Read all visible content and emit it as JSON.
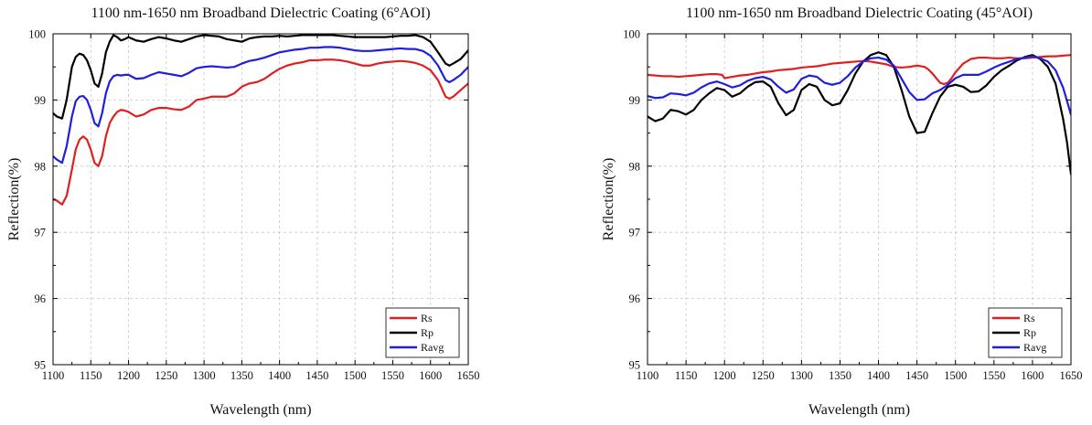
{
  "chart_data": [
    {
      "type": "line",
      "title": "1100 nm-1650 nm Broadband Dielectric Coating (6°AOI)",
      "xlabel": "Wavelength (nm)",
      "ylabel": "Reflection(%)",
      "xlim": [
        1100,
        1650
      ],
      "ylim": [
        95,
        100
      ],
      "xticks": [
        1100,
        1150,
        1200,
        1250,
        1300,
        1350,
        1400,
        1450,
        1500,
        1550,
        1600,
        1650
      ],
      "yticks": [
        95,
        96,
        97,
        98,
        99,
        100
      ],
      "grid": true,
      "legend_position": "bottom-right",
      "series": [
        {
          "name": "Rs",
          "color": "#e02020",
          "x": [
            1100,
            1105,
            1112,
            1118,
            1125,
            1130,
            1135,
            1140,
            1145,
            1150,
            1155,
            1160,
            1165,
            1170,
            1175,
            1180,
            1185,
            1190,
            1195,
            1200,
            1210,
            1220,
            1230,
            1240,
            1250,
            1260,
            1270,
            1280,
            1290,
            1300,
            1310,
            1320,
            1330,
            1340,
            1350,
            1360,
            1370,
            1380,
            1390,
            1400,
            1410,
            1420,
            1430,
            1440,
            1450,
            1460,
            1470,
            1480,
            1490,
            1500,
            1510,
            1520,
            1530,
            1540,
            1550,
            1560,
            1570,
            1580,
            1590,
            1600,
            1610,
            1620,
            1625,
            1630,
            1640,
            1650
          ],
          "y": [
            97.5,
            97.48,
            97.42,
            97.55,
            97.95,
            98.25,
            98.4,
            98.45,
            98.4,
            98.25,
            98.05,
            98.0,
            98.15,
            98.45,
            98.65,
            98.75,
            98.82,
            98.85,
            98.84,
            98.82,
            98.75,
            98.78,
            98.85,
            98.88,
            98.88,
            98.86,
            98.85,
            98.9,
            99.0,
            99.02,
            99.05,
            99.05,
            99.05,
            99.1,
            99.2,
            99.25,
            99.27,
            99.32,
            99.4,
            99.47,
            99.52,
            99.55,
            99.57,
            99.6,
            99.6,
            99.61,
            99.61,
            99.6,
            99.58,
            99.55,
            99.52,
            99.52,
            99.55,
            99.57,
            99.58,
            99.59,
            99.58,
            99.56,
            99.52,
            99.45,
            99.3,
            99.05,
            99.02,
            99.05,
            99.15,
            99.25
          ]
        },
        {
          "name": "Rp",
          "color": "#000000",
          "x": [
            1100,
            1105,
            1112,
            1118,
            1125,
            1130,
            1135,
            1140,
            1145,
            1150,
            1155,
            1160,
            1165,
            1170,
            1175,
            1180,
            1185,
            1190,
            1195,
            1200,
            1210,
            1220,
            1230,
            1240,
            1250,
            1260,
            1270,
            1280,
            1290,
            1300,
            1310,
            1320,
            1330,
            1340,
            1350,
            1360,
            1370,
            1380,
            1390,
            1400,
            1410,
            1420,
            1430,
            1440,
            1450,
            1460,
            1470,
            1480,
            1490,
            1500,
            1510,
            1520,
            1530,
            1540,
            1550,
            1560,
            1570,
            1580,
            1590,
            1600,
            1610,
            1620,
            1625,
            1630,
            1640,
            1650
          ],
          "y": [
            98.8,
            98.75,
            98.72,
            99.0,
            99.5,
            99.65,
            99.7,
            99.68,
            99.6,
            99.45,
            99.25,
            99.2,
            99.4,
            99.72,
            99.88,
            99.98,
            99.95,
            99.9,
            99.92,
            99.95,
            99.9,
            99.88,
            99.92,
            99.95,
            99.93,
            99.9,
            99.88,
            99.92,
            99.96,
            99.98,
            99.97,
            99.96,
            99.92,
            99.9,
            99.88,
            99.93,
            99.95,
            99.96,
            99.96,
            99.97,
            99.96,
            99.97,
            99.98,
            99.98,
            99.98,
            99.98,
            99.98,
            99.97,
            99.96,
            99.95,
            99.95,
            99.95,
            99.95,
            99.95,
            99.96,
            99.97,
            99.97,
            99.98,
            99.95,
            99.88,
            99.72,
            99.55,
            99.52,
            99.55,
            99.62,
            99.75
          ]
        },
        {
          "name": "Ravg",
          "color": "#1f1fe0",
          "x": [
            1100,
            1105,
            1112,
            1118,
            1125,
            1130,
            1135,
            1140,
            1145,
            1150,
            1155,
            1160,
            1165,
            1170,
            1175,
            1180,
            1185,
            1190,
            1195,
            1200,
            1210,
            1220,
            1230,
            1240,
            1250,
            1260,
            1270,
            1280,
            1290,
            1300,
            1310,
            1320,
            1330,
            1340,
            1350,
            1360,
            1370,
            1380,
            1390,
            1400,
            1410,
            1420,
            1430,
            1440,
            1450,
            1460,
            1470,
            1480,
            1490,
            1500,
            1510,
            1520,
            1530,
            1540,
            1550,
            1560,
            1570,
            1580,
            1590,
            1600,
            1610,
            1620,
            1625,
            1630,
            1640,
            1650
          ],
          "y": [
            98.15,
            98.1,
            98.05,
            98.3,
            98.75,
            98.98,
            99.05,
            99.06,
            99.0,
            98.85,
            98.65,
            98.6,
            98.8,
            99.1,
            99.28,
            99.36,
            99.38,
            99.37,
            99.38,
            99.38,
            99.32,
            99.33,
            99.38,
            99.42,
            99.4,
            99.38,
            99.36,
            99.41,
            99.48,
            99.5,
            99.51,
            99.5,
            99.49,
            99.5,
            99.55,
            99.59,
            99.61,
            99.64,
            99.68,
            99.72,
            99.74,
            99.76,
            99.77,
            99.79,
            99.79,
            99.8,
            99.8,
            99.79,
            99.77,
            99.75,
            99.74,
            99.74,
            99.75,
            99.76,
            99.77,
            99.78,
            99.77,
            99.77,
            99.74,
            99.67,
            99.52,
            99.3,
            99.27,
            99.3,
            99.38,
            99.5
          ]
        }
      ]
    },
    {
      "type": "line",
      "title": "1100 nm-1650 nm Broadband Dielectric Coating (45°AOI)",
      "xlabel": "Wavelength (nm)",
      "ylabel": "Reflection(%)",
      "xlim": [
        1100,
        1650
      ],
      "ylim": [
        95,
        100
      ],
      "xticks": [
        1100,
        1150,
        1200,
        1250,
        1300,
        1350,
        1400,
        1450,
        1500,
        1550,
        1600,
        1650
      ],
      "yticks": [
        95,
        96,
        97,
        98,
        99,
        100
      ],
      "grid": true,
      "legend_position": "bottom-right",
      "series": [
        {
          "name": "Rs",
          "color": "#e02020",
          "x": [
            1100,
            1110,
            1120,
            1130,
            1140,
            1150,
            1160,
            1170,
            1180,
            1190,
            1197,
            1200,
            1210,
            1220,
            1230,
            1240,
            1250,
            1260,
            1270,
            1280,
            1290,
            1300,
            1310,
            1320,
            1330,
            1340,
            1350,
            1360,
            1370,
            1380,
            1390,
            1400,
            1410,
            1420,
            1430,
            1440,
            1450,
            1460,
            1465,
            1470,
            1475,
            1480,
            1485,
            1490,
            1495,
            1500,
            1510,
            1520,
            1530,
            1540,
            1550,
            1560,
            1570,
            1580,
            1590,
            1600,
            1610,
            1620,
            1630,
            1640,
            1650
          ],
          "y": [
            99.38,
            99.37,
            99.36,
            99.36,
            99.35,
            99.36,
            99.37,
            99.38,
            99.39,
            99.39,
            99.38,
            99.33,
            99.35,
            99.37,
            99.38,
            99.4,
            99.42,
            99.43,
            99.45,
            99.46,
            99.47,
            99.49,
            99.5,
            99.51,
            99.53,
            99.55,
            99.56,
            99.57,
            99.58,
            99.59,
            99.58,
            99.56,
            99.54,
            99.5,
            99.49,
            99.5,
            99.52,
            99.5,
            99.46,
            99.4,
            99.33,
            99.26,
            99.24,
            99.26,
            99.33,
            99.42,
            99.55,
            99.62,
            99.64,
            99.64,
            99.63,
            99.63,
            99.64,
            99.63,
            99.63,
            99.64,
            99.65,
            99.66,
            99.66,
            99.67,
            99.68
          ]
        },
        {
          "name": "Rp",
          "color": "#000000",
          "x": [
            1100,
            1110,
            1120,
            1130,
            1140,
            1150,
            1160,
            1170,
            1180,
            1190,
            1200,
            1210,
            1220,
            1230,
            1240,
            1250,
            1260,
            1270,
            1280,
            1290,
            1300,
            1310,
            1320,
            1330,
            1340,
            1350,
            1360,
            1370,
            1380,
            1390,
            1400,
            1410,
            1420,
            1430,
            1440,
            1450,
            1460,
            1470,
            1480,
            1490,
            1500,
            1510,
            1520,
            1530,
            1540,
            1550,
            1560,
            1570,
            1580,
            1590,
            1600,
            1610,
            1620,
            1630,
            1640,
            1645,
            1650
          ],
          "y": [
            98.75,
            98.68,
            98.72,
            98.85,
            98.83,
            98.78,
            98.85,
            99.0,
            99.1,
            99.18,
            99.15,
            99.05,
            99.1,
            99.2,
            99.27,
            99.28,
            99.2,
            98.95,
            98.77,
            98.85,
            99.15,
            99.24,
            99.2,
            99.0,
            98.92,
            98.95,
            99.15,
            99.4,
            99.58,
            99.68,
            99.72,
            99.68,
            99.5,
            99.15,
            98.75,
            98.5,
            98.52,
            98.8,
            99.05,
            99.2,
            99.23,
            99.2,
            99.12,
            99.13,
            99.22,
            99.35,
            99.45,
            99.52,
            99.6,
            99.65,
            99.68,
            99.62,
            99.5,
            99.25,
            98.7,
            98.35,
            97.88
          ]
        },
        {
          "name": "Ravg",
          "color": "#1f1fe0",
          "x": [
            1100,
            1110,
            1120,
            1130,
            1140,
            1150,
            1160,
            1170,
            1180,
            1190,
            1200,
            1210,
            1220,
            1230,
            1240,
            1250,
            1260,
            1270,
            1280,
            1290,
            1300,
            1310,
            1320,
            1330,
            1340,
            1350,
            1360,
            1370,
            1380,
            1390,
            1400,
            1410,
            1420,
            1430,
            1440,
            1450,
            1460,
            1470,
            1480,
            1490,
            1500,
            1510,
            1520,
            1530,
            1540,
            1550,
            1560,
            1570,
            1580,
            1590,
            1600,
            1610,
            1620,
            1630,
            1640,
            1650
          ],
          "y": [
            99.06,
            99.03,
            99.04,
            99.1,
            99.09,
            99.07,
            99.11,
            99.19,
            99.25,
            99.28,
            99.24,
            99.19,
            99.22,
            99.29,
            99.33,
            99.35,
            99.31,
            99.2,
            99.11,
            99.16,
            99.32,
            99.37,
            99.35,
            99.26,
            99.23,
            99.26,
            99.36,
            99.49,
            99.58,
            99.63,
            99.64,
            99.61,
            99.52,
            99.32,
            99.12,
            99.0,
            99.01,
            99.1,
            99.15,
            99.23,
            99.33,
            99.38,
            99.38,
            99.38,
            99.43,
            99.49,
            99.54,
            99.58,
            99.62,
            99.64,
            99.66,
            99.63,
            99.58,
            99.45,
            99.18,
            98.78
          ]
        }
      ]
    }
  ]
}
